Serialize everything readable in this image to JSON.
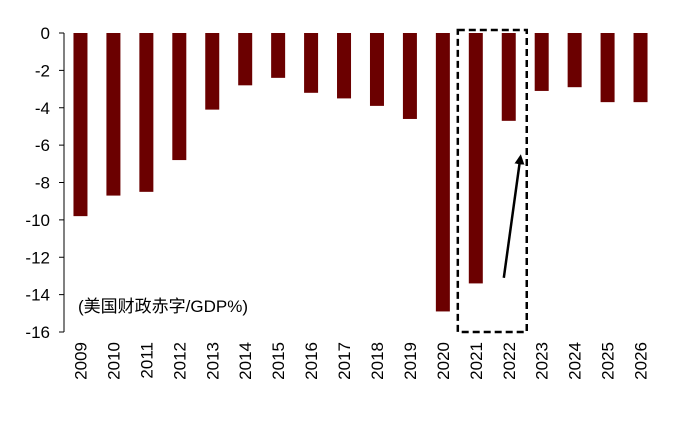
{
  "chart_data": {
    "type": "bar",
    "title": "",
    "xlabel": "",
    "ylabel": "",
    "annotation": "(美国财政赤字/GDP%)",
    "categories": [
      "2009",
      "2010",
      "2011",
      "2012",
      "2013",
      "2014",
      "2015",
      "2016",
      "2017",
      "2018",
      "2019",
      "2020",
      "2021",
      "2022",
      "2023",
      "2024",
      "2025",
      "2026"
    ],
    "values": [
      -9.8,
      -8.7,
      -8.5,
      -6.8,
      -4.1,
      -2.8,
      -2.4,
      -3.2,
      -3.5,
      -3.9,
      -4.6,
      -14.9,
      -13.4,
      -4.7,
      -3.1,
      -2.9,
      -3.7,
      -3.7
    ],
    "ylim": [
      -16,
      0
    ],
    "yticks": [
      0,
      -2,
      -4,
      -6,
      -8,
      -10,
      -12,
      -14,
      -16
    ],
    "bar_color": "#6b0000",
    "grid": false,
    "highlight": {
      "categories": [
        "2021",
        "2022"
      ],
      "style": "dashed-box"
    },
    "arrow": {
      "from_value": -13.1,
      "to_value": -6.7,
      "between": [
        "2021",
        "2022"
      ]
    }
  }
}
